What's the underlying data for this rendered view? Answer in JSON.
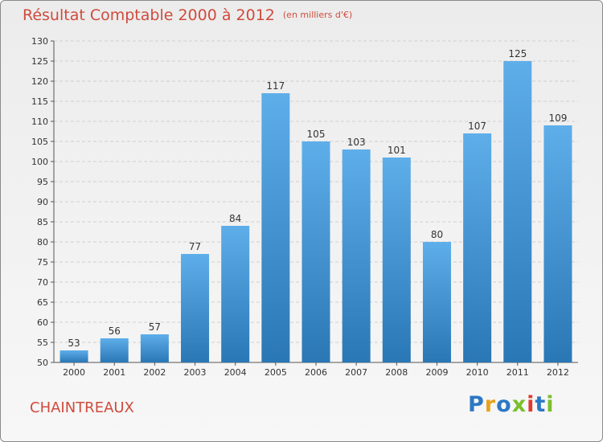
{
  "title": "Résultat Comptable 2000 à 2012",
  "subtitle": "(en milliers d'€)",
  "commune": "CHAINTREAUX",
  "logo": {
    "letters": [
      "P",
      "r",
      "o",
      "x",
      "i",
      "t",
      "i"
    ],
    "colors": [
      "#2c78c4",
      "#e8a21e",
      "#2c78c4",
      "#7abf2c",
      "#e03a2f",
      "#2c78c4",
      "#7abf2c"
    ]
  },
  "chart_data": {
    "type": "bar",
    "categories": [
      "2000",
      "2001",
      "2002",
      "2003",
      "2004",
      "2005",
      "2006",
      "2007",
      "2008",
      "2009",
      "2010",
      "2011",
      "2012"
    ],
    "values": [
      53,
      56,
      57,
      77,
      84,
      117,
      105,
      103,
      101,
      80,
      107,
      125,
      109
    ],
    "data_labels": [
      "53",
      "56",
      "57",
      "77",
      "84",
      "117",
      "105",
      "103",
      "101",
      "80",
      "107",
      "125",
      "109"
    ],
    "yticks": [
      50,
      55,
      60,
      65,
      70,
      75,
      80,
      85,
      90,
      95,
      100,
      105,
      110,
      115,
      120,
      125,
      130
    ],
    "ylim": [
      50,
      130
    ],
    "grid": true,
    "bar_color": "#5aa9e6",
    "bar_dark": "#2a77b5"
  }
}
